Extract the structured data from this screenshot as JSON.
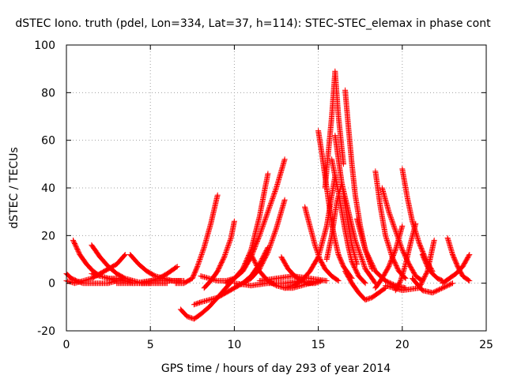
{
  "chart_data": {
    "type": "scatter",
    "title": "dSTEC Iono. truth (pdel, Lon=334, Lat=37, h=114): STEC-STEC_elemax in phase cont",
    "xlabel": "GPS time / hours of day 293 of year 2014",
    "ylabel": "dSTEC  / TECUs",
    "xlim": [
      0,
      25
    ],
    "ylim": [
      -20,
      100
    ],
    "x_ticks": [
      0,
      5,
      10,
      15,
      20,
      25
    ],
    "y_ticks": [
      -20,
      0,
      20,
      40,
      60,
      80,
      100
    ],
    "x_tick_labels": [
      "0",
      "5",
      "10",
      "15",
      "20",
      "25"
    ],
    "y_tick_labels": [
      "-20",
      "0",
      "20",
      "40",
      "60",
      "80",
      "100"
    ],
    "grid": true,
    "marker": "plus",
    "color": "#ff0000",
    "series": [
      {
        "x": [
          0.0,
          0.3,
          0.6,
          1.0,
          1.5,
          2.0,
          2.5,
          3.0
        ],
        "y": [
          4,
          2,
          1,
          0,
          0,
          0,
          0,
          1
        ]
      },
      {
        "x": [
          0.0,
          0.5,
          1.0,
          1.5,
          2.0,
          2.5,
          3.0,
          3.5
        ],
        "y": [
          1,
          0,
          1,
          2,
          4,
          6,
          8,
          12
        ]
      },
      {
        "x": [
          0.4,
          0.8,
          1.2,
          1.6,
          2.0,
          2.5,
          3.0,
          3.5,
          4.0,
          5.0
        ],
        "y": [
          18,
          12,
          8,
          5,
          3,
          2,
          1,
          1,
          0,
          0
        ]
      },
      {
        "x": [
          1.5,
          2.0,
          2.5,
          3.0,
          3.5,
          4.0,
          4.5,
          5.0,
          5.5,
          6.0
        ],
        "y": [
          16,
          11,
          7,
          4,
          2,
          1,
          0,
          0,
          0,
          0
        ]
      },
      {
        "x": [
          1.5,
          2.0,
          2.5,
          3.0,
          3.5,
          4.0
        ],
        "y": [
          4,
          3,
          2,
          2,
          1,
          1
        ]
      },
      {
        "x": [
          3.8,
          4.3,
          4.8,
          5.3,
          5.8,
          6.3,
          6.8
        ],
        "y": [
          12,
          8,
          5,
          3,
          2,
          1,
          1
        ]
      },
      {
        "x": [
          4.5,
          5.0,
          5.5,
          6.0,
          6.6
        ],
        "y": [
          0,
          1,
          2,
          4,
          7
        ]
      },
      {
        "x": [
          3.0,
          4.0,
          5.0,
          6.0,
          7.0
        ],
        "y": [
          0,
          0,
          1,
          1,
          1
        ]
      },
      {
        "x": [
          6.5,
          7.0,
          7.5,
          7.8,
          8.2,
          8.6,
          9.0
        ],
        "y": [
          0,
          0,
          2,
          7,
          15,
          25,
          37
        ]
      },
      {
        "x": [
          6.8,
          7.2,
          7.6,
          8.0,
          8.5,
          9.0,
          9.5,
          10.0
        ],
        "y": [
          -11,
          -14,
          -15,
          -13,
          -10,
          -6,
          -2,
          2
        ]
      },
      {
        "x": [
          7.6,
          8.0,
          8.5,
          9.0,
          9.5,
          10.0,
          10.5,
          11.0,
          11.5,
          12.0
        ],
        "y": [
          -9,
          -8,
          -7,
          -6,
          -4,
          -2,
          0,
          3,
          8,
          15
        ]
      },
      {
        "x": [
          8.2,
          8.6,
          9.0,
          9.4,
          9.8,
          10.0
        ],
        "y": [
          -2,
          1,
          5,
          11,
          19,
          26
        ]
      },
      {
        "x": [
          8.0,
          8.5,
          9.0,
          9.5,
          10.0,
          10.5,
          11.0,
          11.5,
          12.0,
          12.5,
          13.0
        ],
        "y": [
          3,
          2,
          1,
          1,
          2,
          5,
          11,
          20,
          30,
          40,
          52
        ]
      },
      {
        "x": [
          10.5,
          11.0,
          11.5,
          12.0,
          12.5,
          13.0
        ],
        "y": [
          0,
          2,
          6,
          13,
          23,
          35
        ]
      },
      {
        "x": [
          9.5,
          10.0,
          10.5,
          11.0,
          11.5,
          12.0
        ],
        "y": [
          0,
          2,
          6,
          14,
          28,
          46
        ]
      },
      {
        "x": [
          11.0,
          11.5,
          12.0,
          12.5,
          13.0,
          13.5,
          14.0,
          14.5,
          15.0
        ],
        "y": [
          12,
          5,
          1,
          -1,
          -2,
          -2,
          -1,
          0,
          1
        ]
      },
      {
        "x": [
          12.8,
          13.2,
          13.6,
          14.0,
          14.4,
          14.8,
          15.2
        ],
        "y": [
          11,
          6,
          3,
          1,
          0,
          0,
          1
        ]
      },
      {
        "x": [
          14.2,
          14.5,
          14.8,
          15.1,
          15.4,
          15.8,
          16.2
        ],
        "y": [
          32,
          24,
          16,
          10,
          6,
          3,
          1
        ]
      },
      {
        "x": [
          13.0,
          13.5,
          14.0,
          14.5,
          15.0,
          15.5,
          16.0
        ],
        "y": [
          -2,
          -1,
          1,
          5,
          11,
          24,
          45
        ]
      },
      {
        "x": [
          15.0,
          15.2,
          15.4,
          15.6,
          15.8,
          16.0,
          16.2,
          16.5,
          17.0
        ],
        "y": [
          64,
          55,
          45,
          35,
          25,
          18,
          12,
          7,
          2
        ]
      },
      {
        "x": [
          15.4,
          15.6,
          15.8,
          16.0,
          16.2,
          16.5
        ],
        "y": [
          40,
          55,
          70,
          89,
          70,
          50
        ]
      },
      {
        "x": [
          15.8,
          16.0,
          16.2,
          16.4,
          16.6,
          16.8,
          17.0,
          17.4,
          17.8
        ],
        "y": [
          52,
          45,
          38,
          30,
          22,
          15,
          9,
          3,
          0
        ]
      },
      {
        "x": [
          16.0,
          16.2,
          16.4,
          16.6,
          16.8,
          17.0,
          17.3
        ],
        "y": [
          62,
          52,
          42,
          33,
          24,
          16,
          8
        ]
      },
      {
        "x": [
          16.6,
          16.8,
          17.0,
          17.2,
          17.5,
          17.8,
          18.2
        ],
        "y": [
          81,
          65,
          50,
          37,
          24,
          14,
          6
        ]
      },
      {
        "x": [
          15.5,
          15.8,
          16.1,
          16.4,
          16.8,
          17.2,
          17.8,
          18.4
        ],
        "y": [
          10,
          20,
          34,
          42,
          30,
          18,
          6,
          0
        ]
      },
      {
        "x": [
          17.3,
          17.8,
          18.4,
          19.0,
          19.6,
          20.2
        ],
        "y": [
          27,
          14,
          5,
          1,
          -1,
          -2
        ]
      },
      {
        "x": [
          18.4,
          18.7,
          19.0,
          19.4,
          19.8,
          20.2
        ],
        "y": [
          47,
          32,
          20,
          11,
          5,
          2
        ]
      },
      {
        "x": [
          16.6,
          17.0,
          17.4,
          17.8,
          18.2,
          18.6,
          19.0
        ],
        "y": [
          5,
          0,
          -4,
          -7,
          -6,
          -4,
          -2
        ]
      },
      {
        "x": [
          18.4,
          18.8,
          19.2,
          19.6,
          20.0
        ],
        "y": [
          -2,
          2,
          7,
          14,
          24
        ]
      },
      {
        "x": [
          18.8,
          19.2,
          19.6,
          20.0,
          20.4,
          20.8,
          21.2
        ],
        "y": [
          40,
          30,
          22,
          14,
          8,
          3,
          1
        ]
      },
      {
        "x": [
          19.6,
          19.9,
          20.2,
          20.5,
          20.8
        ],
        "y": [
          -3,
          1,
          8,
          17,
          25
        ]
      },
      {
        "x": [
          20.0,
          20.3,
          20.6,
          21.0,
          21.4,
          21.8
        ],
        "y": [
          48,
          36,
          26,
          17,
          10,
          5
        ]
      },
      {
        "x": [
          19.0,
          20.0,
          21.0,
          21.5,
          21.9
        ],
        "y": [
          -1,
          -3,
          -2,
          5,
          18
        ]
      },
      {
        "x": [
          20.6,
          21.2,
          21.8,
          22.4,
          23.0
        ],
        "y": [
          2,
          -3,
          -4,
          -2,
          0
        ]
      },
      {
        "x": [
          21.2,
          21.5,
          21.8,
          22.1,
          22.4
        ],
        "y": [
          12,
          7,
          4,
          2,
          1
        ]
      },
      {
        "x": [
          22.7,
          23.0,
          23.3,
          23.6,
          24.0
        ],
        "y": [
          19,
          12,
          7,
          3,
          1
        ]
      },
      {
        "x": [
          22.4,
          22.8,
          23.2,
          23.6,
          24.0
        ],
        "y": [
          0,
          2,
          4,
          7,
          12
        ]
      },
      {
        "x": [
          11.5,
          12.5,
          13.5,
          14.5,
          15.5
        ],
        "y": [
          1,
          2,
          3,
          2,
          1
        ]
      },
      {
        "x": [
          10.0,
          11.0,
          12.0,
          13.0,
          14.0
        ],
        "y": [
          0,
          -1,
          0,
          0,
          1
        ]
      }
    ]
  }
}
